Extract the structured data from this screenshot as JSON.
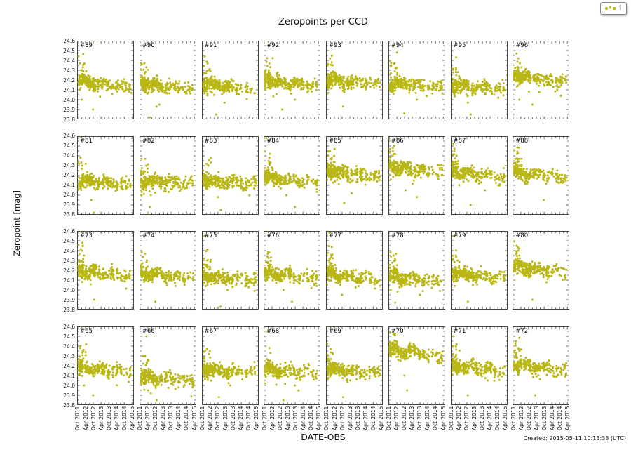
{
  "figure": {
    "title": "Zeropoints per CCD",
    "xlabel": "DATE-OBS",
    "ylabel": "Zeropoint [mag]",
    "created": "Created: 2015-05-11 10:13:33 (UTC)"
  },
  "legend": {
    "label": "i",
    "marker": "scatter-dots"
  },
  "colors": {
    "point": "#b9b714",
    "spine": "#444444",
    "text": "#111111",
    "background": "#ffffff"
  },
  "chart_data": {
    "type": "scatter",
    "title": "Zeropoints per CCD",
    "xlabel": "DATE-OBS",
    "ylabel": "Zeropoint [mag]",
    "ylim": [
      23.8,
      24.6
    ],
    "y_ticks": [
      23.8,
      23.9,
      24.0,
      24.1,
      24.2,
      24.3,
      24.4,
      24.5,
      24.6
    ],
    "x_ticklabels": [
      "Oct 2011",
      "Apr 2012",
      "Oct 2012",
      "Apr 2013",
      "Oct 2013",
      "Apr 2014",
      "Oct 2014",
      "Apr 2015"
    ],
    "x_axis_months_total": 44,
    "x_tick_month_offsets": [
      0.5,
      6.5,
      12.5,
      18.5,
      24.5,
      30.5,
      36.5,
      42.5
    ],
    "grid": false,
    "legend_position": "top-right-outside",
    "series_label": "i",
    "rows": 4,
    "cols": 8,
    "gen": {
      "points_per_panel": 285,
      "x_clusters": [
        [
          0.035,
          0.025,
          10
        ],
        [
          0.09,
          0.04,
          16
        ],
        [
          0.16,
          0.05,
          12
        ],
        [
          0.23,
          0.04,
          10
        ],
        [
          0.3,
          0.05,
          10
        ],
        [
          0.38,
          0.04,
          7
        ],
        [
          0.46,
          0.05,
          8
        ],
        [
          0.54,
          0.04,
          6
        ],
        [
          0.62,
          0.05,
          6
        ],
        [
          0.7,
          0.04,
          4
        ],
        [
          0.78,
          0.04,
          4
        ],
        [
          0.86,
          0.05,
          4
        ],
        [
          0.93,
          0.03,
          3
        ]
      ],
      "wiggle_amp": 0.02,
      "noise_sigma": 0.032,
      "low_tail_prob": 0.06,
      "early_high_prob": 0.22
    },
    "panels": [
      {
        "label": "#89",
        "ccd": 89,
        "seed": 89,
        "trend": [
          24.19,
          24.12
        ],
        "high_outliers": [
          [
            0.28,
            24.6
          ],
          [
            0.05,
            24.37
          ],
          [
            0.07,
            24.3
          ],
          [
            0.1,
            24.33
          ]
        ],
        "low_outliers": [
          [
            0.28,
            23.9
          ],
          [
            0.08,
            24.0
          ]
        ]
      },
      {
        "label": "#90",
        "ccd": 90,
        "seed": 90,
        "trend": [
          24.17,
          24.11
        ],
        "high_outliers": [
          [
            0.12,
            24.33
          ],
          [
            0.1,
            24.28
          ]
        ],
        "low_outliers": [
          [
            0.18,
            23.82
          ],
          [
            0.3,
            23.93
          ],
          [
            0.35,
            23.95
          ]
        ]
      },
      {
        "label": "#91",
        "ccd": 91,
        "seed": 91,
        "trend": [
          24.16,
          24.1
        ],
        "high_outliers": [
          [
            0.05,
            24.44
          ],
          [
            0.1,
            24.37
          ],
          [
            0.12,
            24.3
          ]
        ],
        "low_outliers": [
          [
            0.25,
            23.85
          ],
          [
            0.4,
            23.97
          ]
        ]
      },
      {
        "label": "#92",
        "ccd": 92,
        "seed": 92,
        "trend": [
          24.2,
          24.13
        ],
        "high_outliers": [
          [
            0.08,
            24.6
          ],
          [
            0.1,
            24.37
          ],
          [
            0.12,
            24.33
          ]
        ],
        "low_outliers": [
          [
            0.33,
            23.9
          ],
          [
            0.55,
            24.0
          ]
        ]
      },
      {
        "label": "#93",
        "ccd": 93,
        "seed": 93,
        "trend": [
          24.21,
          24.15
        ],
        "high_outliers": [
          [
            0.07,
            24.42
          ],
          [
            0.1,
            24.38
          ],
          [
            0.12,
            24.35
          ]
        ],
        "low_outliers": [
          [
            0.3,
            23.93
          ]
        ]
      },
      {
        "label": "#94",
        "ccd": 94,
        "seed": 94,
        "trend": [
          24.17,
          24.12
        ],
        "high_outliers": [
          [
            0.08,
            24.55
          ],
          [
            0.11,
            24.37
          ],
          [
            0.13,
            24.32
          ]
        ],
        "low_outliers": [
          [
            0.28,
            23.86
          ],
          [
            0.5,
            24.0
          ]
        ]
      },
      {
        "label": "#95",
        "ccd": 95,
        "seed": 95,
        "trend": [
          24.15,
          24.1
        ],
        "high_outliers": [
          [
            0.09,
            24.32
          ],
          [
            0.12,
            24.28
          ]
        ],
        "low_outliers": [
          [
            0.35,
            23.85
          ],
          [
            0.3,
            23.97
          ]
        ]
      },
      {
        "label": "#96",
        "ccd": 96,
        "seed": 96,
        "trend": [
          24.25,
          24.18
        ],
        "high_outliers": [
          [
            0.07,
            24.47
          ],
          [
            0.1,
            24.42
          ],
          [
            0.13,
            24.37
          ]
        ],
        "low_outliers": [
          [
            0.12,
            24.0
          ],
          [
            0.35,
            23.95
          ]
        ]
      },
      {
        "label": "#81",
        "ccd": 81,
        "seed": 81,
        "trend": [
          24.16,
          24.1
        ],
        "high_outliers": [
          [
            0.05,
            24.6
          ],
          [
            0.06,
            24.38
          ],
          [
            0.09,
            24.3
          ]
        ],
        "low_outliers": [
          [
            0.3,
            23.82
          ],
          [
            0.25,
            23.95
          ]
        ]
      },
      {
        "label": "#82",
        "ccd": 82,
        "seed": 82,
        "trend": [
          24.15,
          24.12
        ],
        "high_outliers": [
          [
            0.1,
            24.37
          ],
          [
            0.12,
            24.3
          ]
        ],
        "low_outliers": [
          [
            0.15,
            23.8
          ],
          [
            0.18,
            23.88
          ],
          [
            0.2,
            24.0
          ]
        ]
      },
      {
        "label": "#83",
        "ccd": 83,
        "seed": 83,
        "trend": [
          24.15,
          24.11
        ],
        "high_outliers": [
          [
            0.08,
            24.32
          ],
          [
            0.11,
            24.3
          ]
        ],
        "low_outliers": [
          [
            0.33,
            23.85
          ],
          [
            0.28,
            23.98
          ]
        ]
      },
      {
        "label": "#84",
        "ccd": 84,
        "seed": 84,
        "trend": [
          24.18,
          24.12
        ],
        "high_outliers": [
          [
            0.05,
            24.58
          ],
          [
            0.09,
            24.35
          ],
          [
            0.12,
            24.33
          ]
        ],
        "low_outliers": [
          [
            0.55,
            23.88
          ],
          [
            0.4,
            24.0
          ]
        ]
      },
      {
        "label": "#85",
        "ccd": 85,
        "seed": 85,
        "trend": [
          24.25,
          24.17
        ],
        "high_outliers": [
          [
            0.07,
            24.45
          ],
          [
            0.1,
            24.38
          ]
        ],
        "low_outliers": [
          [
            0.32,
            23.92
          ],
          [
            0.45,
            24.02
          ]
        ]
      },
      {
        "label": "#86",
        "ccd": 86,
        "seed": 86,
        "trend": [
          24.29,
          24.22
        ],
        "high_outliers": [
          [
            0.08,
            24.48
          ],
          [
            0.11,
            24.42
          ]
        ],
        "low_outliers": [
          [
            0.5,
            23.98
          ],
          [
            0.3,
            24.05
          ]
        ]
      },
      {
        "label": "#87",
        "ccd": 87,
        "seed": 87,
        "trend": [
          24.25,
          24.17
        ],
        "high_outliers": [
          [
            0.06,
            24.45
          ],
          [
            0.1,
            24.4
          ]
        ],
        "low_outliers": [
          [
            0.35,
            23.9
          ],
          [
            0.6,
            24.05
          ]
        ]
      },
      {
        "label": "#88",
        "ccd": 88,
        "seed": 88,
        "trend": [
          24.24,
          24.17
        ],
        "high_outliers": [
          [
            0.08,
            24.42
          ],
          [
            0.12,
            24.37
          ]
        ],
        "low_outliers": [
          [
            0.55,
            23.95
          ]
        ]
      },
      {
        "label": "#73",
        "ccd": 73,
        "seed": 73,
        "trend": [
          24.2,
          24.14
        ],
        "high_outliers": [
          [
            0.05,
            24.6
          ],
          [
            0.09,
            24.4
          ],
          [
            0.12,
            24.35
          ]
        ],
        "low_outliers": [
          [
            0.3,
            23.9
          ]
        ]
      },
      {
        "label": "#74",
        "ccd": 74,
        "seed": 74,
        "trend": [
          24.17,
          24.12
        ],
        "high_outliers": [
          [
            0.1,
            24.37
          ],
          [
            0.13,
            24.3
          ]
        ],
        "low_outliers": [
          [
            0.28,
            23.88
          ]
        ]
      },
      {
        "label": "#75",
        "ccd": 75,
        "seed": 75,
        "trend": [
          24.14,
          24.1
        ],
        "high_outliers": [
          [
            0.05,
            24.55
          ],
          [
            0.09,
            24.3
          ]
        ],
        "low_outliers": [
          [
            0.33,
            23.83
          ],
          [
            0.45,
            24.0
          ]
        ]
      },
      {
        "label": "#76",
        "ccd": 76,
        "seed": 76,
        "trend": [
          24.17,
          24.12
        ],
        "high_outliers": [
          [
            0.08,
            24.6
          ],
          [
            0.1,
            24.38
          ],
          [
            0.13,
            24.33
          ]
        ],
        "low_outliers": [
          [
            0.5,
            23.88
          ],
          [
            0.35,
            24.0
          ]
        ]
      },
      {
        "label": "#77",
        "ccd": 77,
        "seed": 77,
        "trend": [
          24.16,
          24.1
        ],
        "high_outliers": [
          [
            0.06,
            24.58
          ],
          [
            0.1,
            24.35
          ]
        ],
        "low_outliers": [
          [
            0.32,
            23.8
          ],
          [
            0.28,
            23.95
          ]
        ]
      },
      {
        "label": "#78",
        "ccd": 78,
        "seed": 78,
        "trend": [
          24.13,
          24.08
        ],
        "high_outliers": [
          [
            0.09,
            24.35
          ],
          [
            0.12,
            24.3
          ]
        ],
        "low_outliers": [
          [
            0.12,
            23.87
          ],
          [
            0.35,
            23.8
          ],
          [
            0.55,
            23.95
          ]
        ]
      },
      {
        "label": "#79",
        "ccd": 79,
        "seed": 79,
        "trend": [
          24.17,
          24.12
        ],
        "high_outliers": [
          [
            0.05,
            24.55
          ],
          [
            0.09,
            24.35
          ],
          [
            0.12,
            24.3
          ]
        ],
        "low_outliers": [
          [
            0.3,
            23.88
          ]
        ]
      },
      {
        "label": "#80",
        "ccd": 80,
        "seed": 80,
        "trend": [
          24.24,
          24.18
        ],
        "high_outliers": [
          [
            0.07,
            24.45
          ],
          [
            0.1,
            24.4
          ],
          [
            0.12,
            24.35
          ]
        ],
        "low_outliers": [
          [
            0.35,
            23.9
          ]
        ]
      },
      {
        "label": "#65",
        "ccd": 65,
        "seed": 65,
        "trend": [
          24.18,
          24.13
        ],
        "high_outliers": [
          [
            0.08,
            24.6
          ],
          [
            0.05,
            24.38
          ],
          [
            0.1,
            24.35
          ]
        ],
        "low_outliers": [
          [
            0.28,
            23.9
          ],
          [
            0.12,
            24.0
          ]
        ]
      },
      {
        "label": "#66",
        "ccd": 66,
        "seed": 66,
        "trend": [
          24.08,
          24.06
        ],
        "high_outliers": [
          [
            0.12,
            24.5
          ],
          [
            0.1,
            24.3
          ]
        ],
        "low_outliers": [
          [
            0.2,
            23.92
          ],
          [
            0.3,
            23.85
          ],
          [
            0.15,
            23.95
          ]
        ]
      },
      {
        "label": "#67",
        "ccd": 67,
        "seed": 67,
        "trend": [
          24.17,
          24.13
        ],
        "high_outliers": [
          [
            0.09,
            24.37
          ],
          [
            0.12,
            24.32
          ]
        ],
        "low_outliers": [
          [
            0.3,
            23.88
          ],
          [
            0.5,
            24.0
          ]
        ]
      },
      {
        "label": "#68",
        "ccd": 68,
        "seed": 68,
        "trend": [
          24.16,
          24.12
        ],
        "high_outliers": [
          [
            0.07,
            24.55
          ],
          [
            0.1,
            24.38
          ],
          [
            0.12,
            24.33
          ]
        ],
        "low_outliers": [
          [
            0.35,
            23.85
          ],
          [
            0.55,
            24.0
          ]
        ]
      },
      {
        "label": "#69",
        "ccd": 69,
        "seed": 69,
        "trend": [
          24.17,
          24.12
        ],
        "high_outliers": [
          [
            0.04,
            24.6
          ],
          [
            0.08,
            24.37
          ],
          [
            0.11,
            24.33
          ]
        ],
        "low_outliers": [
          [
            0.3,
            23.88
          ]
        ]
      },
      {
        "label": "#70",
        "ccd": 70,
        "seed": 70,
        "trend": [
          24.36,
          24.3
        ],
        "high_outliers": [
          [
            0.09,
            24.52
          ],
          [
            0.12,
            24.45
          ]
        ],
        "low_outliers": [
          [
            0.33,
            23.95
          ],
          [
            0.28,
            24.1
          ]
        ]
      },
      {
        "label": "#71",
        "ccd": 71,
        "seed": 71,
        "trend": [
          24.2,
          24.15
        ],
        "high_outliers": [
          [
            0.05,
            24.5
          ],
          [
            0.09,
            24.4
          ]
        ],
        "low_outliers": [
          [
            0.3,
            23.9
          ],
          [
            0.65,
            24.05
          ]
        ]
      },
      {
        "label": "#72",
        "ccd": 72,
        "seed": 72,
        "trend": [
          24.21,
          24.15
        ],
        "high_outliers": [
          [
            0.06,
            24.45
          ],
          [
            0.1,
            24.38
          ]
        ],
        "low_outliers": [
          [
            0.4,
            23.9
          ]
        ]
      }
    ]
  }
}
